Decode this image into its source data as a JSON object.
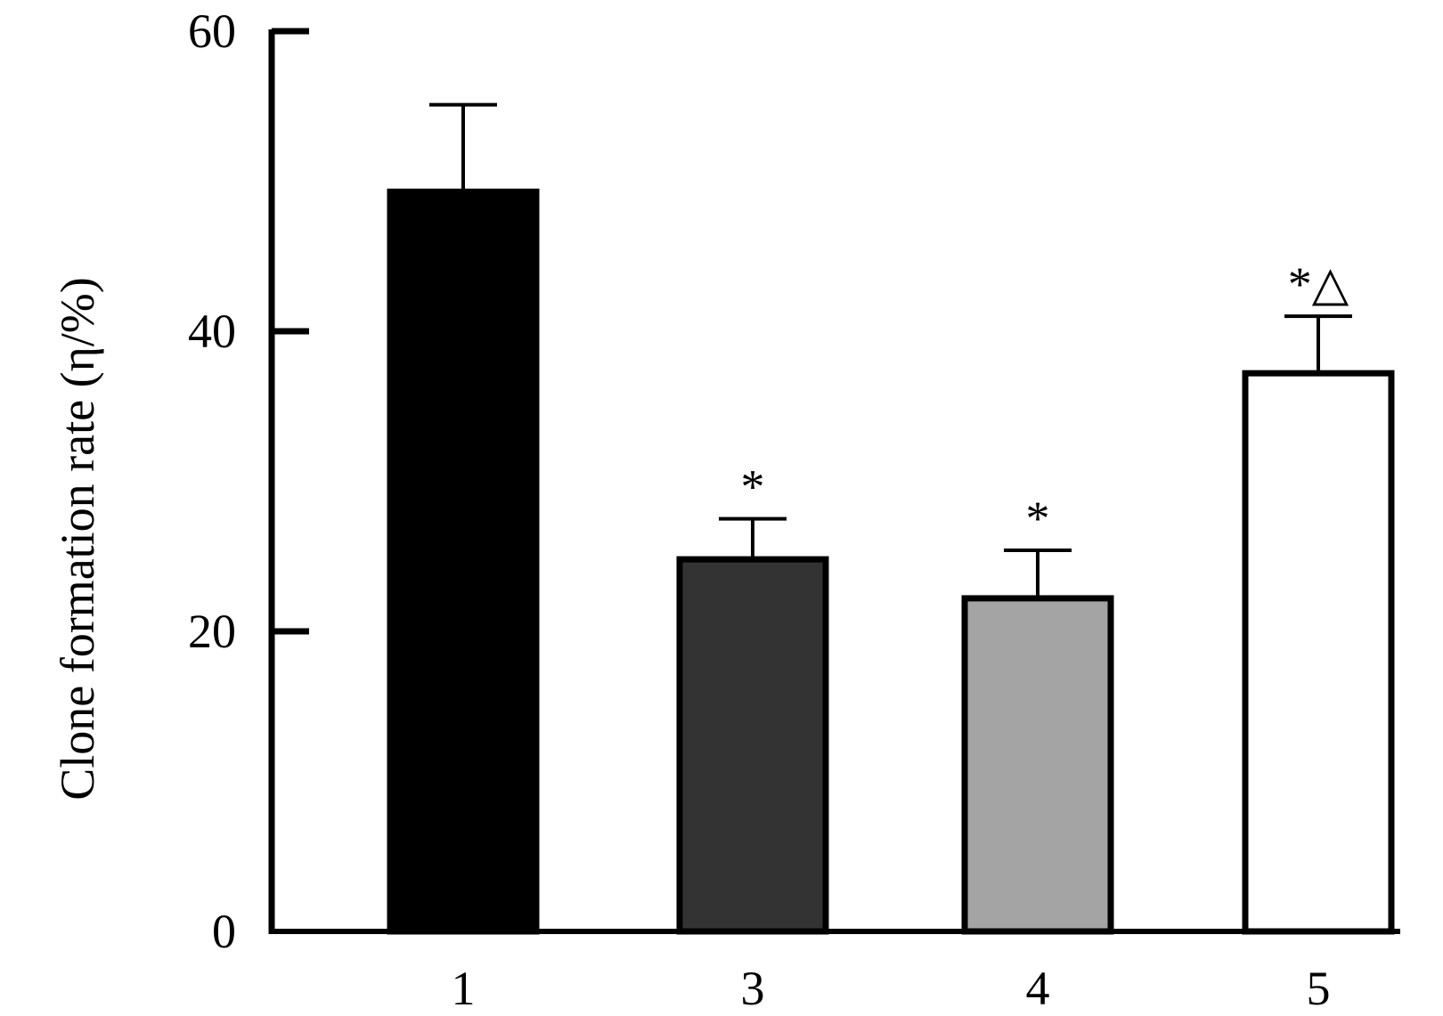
{
  "chart_data": {
    "type": "bar",
    "categories": [
      "1",
      "3",
      "4",
      "5"
    ],
    "values": [
      49.3,
      24.8,
      22.2,
      37.2
    ],
    "errors": [
      5.8,
      2.7,
      3.2,
      3.8
    ],
    "annotations": [
      "",
      "*",
      "*",
      "*△"
    ],
    "bar_colors": [
      "#000000",
      "#333333",
      "#a4a4a4",
      "#ffffff"
    ],
    "ylabel": "Clone formation rate (η/%)",
    "xlabel": "",
    "ylim": [
      0,
      60
    ],
    "yticks": [
      "0",
      "20",
      "40",
      "60"
    ],
    "grid": false
  }
}
